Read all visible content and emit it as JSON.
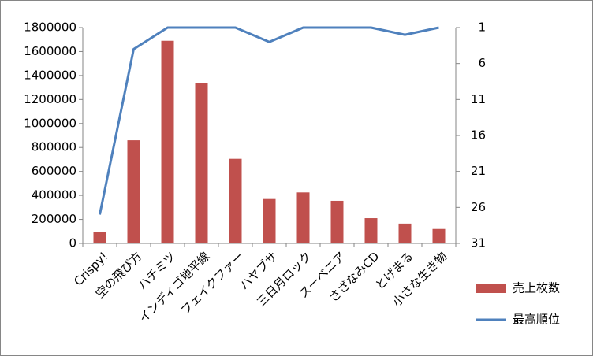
{
  "chart_data": {
    "type": "bar",
    "categories": [
      "Crispy!",
      "空の飛び方",
      "ハチミツ",
      "インディゴ地平線",
      "フェイクファー",
      "ハヤブサ",
      "三日月ロック",
      "スーベニア",
      "さざなみCD",
      "とげまる",
      "小さな生き物"
    ],
    "series": [
      {
        "name": "売上枚数",
        "type": "bar",
        "color": "#c0504d",
        "values": [
          95000,
          860000,
          1690000,
          1340000,
          705000,
          370000,
          425000,
          355000,
          210000,
          165000,
          120000
        ]
      },
      {
        "name": "最高順位",
        "type": "line",
        "axis": "y2",
        "color": "#4f81bd",
        "values": [
          27,
          4,
          1,
          1,
          1,
          3,
          1,
          1,
          1,
          2,
          1
        ]
      }
    ],
    "ylim": [
      0,
      1800000
    ],
    "yticks": [
      0,
      200000,
      400000,
      600000,
      800000,
      1000000,
      1200000,
      1400000,
      1600000,
      1800000
    ],
    "y2lim": [
      1,
      31
    ],
    "y2ticks": [
      1,
      6,
      11,
      16,
      21,
      26,
      31
    ],
    "y2_inverted": true,
    "grid": false,
    "legend": "right"
  }
}
